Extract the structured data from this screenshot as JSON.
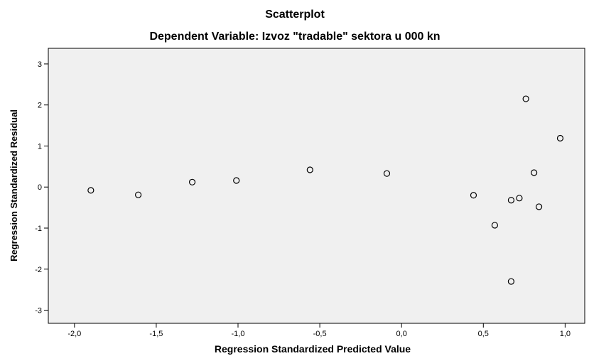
{
  "chart_data": {
    "type": "scatter",
    "title": "Scatterplot",
    "subtitle": "Dependent Variable: Izvoz \"tradable\" sektora u 000 kn",
    "xlabel": "Regression Standardized Predicted Value",
    "ylabel": "Regression Standardized Residual",
    "xlim": [
      -2.16,
      1.12
    ],
    "ylim": [
      -3.32,
      3.38
    ],
    "xticks": [
      -2.0,
      -1.5,
      -1.0,
      -0.5,
      0.0,
      0.5,
      1.0
    ],
    "xtick_labels": [
      "-2,0",
      "-1,5",
      "-1,0",
      "-0,5",
      "0,0",
      "0,5",
      "1,0"
    ],
    "yticks": [
      3,
      2,
      1,
      0,
      -1,
      -2,
      -3
    ],
    "ytick_labels": [
      "3",
      "2",
      "1",
      "0",
      "-1",
      "-2",
      "-3"
    ],
    "grid": false,
    "colors": {
      "plot_background": "#f0f0f0",
      "marker_stroke": "#000000",
      "marker_fill": "#f0f0f0"
    },
    "points": [
      {
        "x": -1.9,
        "y": -0.08
      },
      {
        "x": -1.61,
        "y": -0.19
      },
      {
        "x": -1.28,
        "y": 0.12
      },
      {
        "x": -1.01,
        "y": 0.16
      },
      {
        "x": -0.56,
        "y": 0.42
      },
      {
        "x": -0.09,
        "y": 0.33
      },
      {
        "x": 0.44,
        "y": -0.2
      },
      {
        "x": 0.57,
        "y": -0.93
      },
      {
        "x": 0.67,
        "y": -0.32
      },
      {
        "x": 0.67,
        "y": -2.3
      },
      {
        "x": 0.72,
        "y": -0.27
      },
      {
        "x": 0.76,
        "y": 2.15
      },
      {
        "x": 0.81,
        "y": 0.35
      },
      {
        "x": 0.84,
        "y": -0.48
      },
      {
        "x": 0.97,
        "y": 1.19
      }
    ]
  }
}
